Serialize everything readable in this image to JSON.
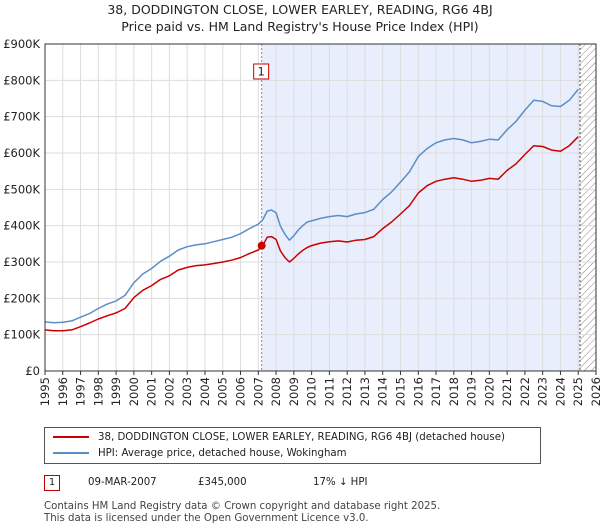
{
  "title": {
    "line1": "38, DODDINGTON CLOSE, LOWER EARLEY, READING, RG6 4BJ",
    "line2": "Price paid vs. HM Land Registry's House Price Index (HPI)"
  },
  "colors": {
    "property": "#cc0000",
    "hpi": "#5b8ec9",
    "shade": "#e8eefb",
    "grid": "#dddddd",
    "vline_sale": "#dd6666",
    "vline_end": "#555555",
    "hatch": "#888888"
  },
  "chart_data": {
    "type": "line",
    "title": "38, DODDINGTON CLOSE, LOWER EARLEY, READING, RG6 4BJ — Price paid vs. HM Land Registry's House Price Index (HPI)",
    "xlabel": "",
    "ylabel": "",
    "xlim": [
      1995.0,
      2026.0
    ],
    "ylim": [
      0,
      900000
    ],
    "x_ticks": [
      1995,
      1996,
      1997,
      1998,
      1999,
      2000,
      2001,
      2002,
      2003,
      2004,
      2005,
      2006,
      2007,
      2008,
      2009,
      2010,
      2011,
      2012,
      2013,
      2014,
      2015,
      2016,
      2017,
      2018,
      2019,
      2020,
      2021,
      2022,
      2023,
      2024,
      2025,
      2026
    ],
    "y_ticks": [
      0,
      100000,
      200000,
      300000,
      400000,
      500000,
      600000,
      700000,
      800000,
      900000
    ],
    "y_tick_labels": [
      "£0",
      "£100K",
      "£200K",
      "£300K",
      "£400K",
      "£500K",
      "£600K",
      "£700K",
      "£800K",
      "£900K"
    ],
    "grid": true,
    "x": [
      1995.0,
      1995.5,
      1996.0,
      1996.5,
      1997.0,
      1997.5,
      1998.0,
      1998.5,
      1999.0,
      1999.5,
      2000.0,
      2000.5,
      2001.0,
      2001.5,
      2002.0,
      2002.5,
      2003.0,
      2003.5,
      2004.0,
      2004.5,
      2005.0,
      2005.5,
      2006.0,
      2006.5,
      2007.0,
      2007.25,
      2007.5,
      2007.75,
      2008.0,
      2008.25,
      2008.5,
      2008.75,
      2009.0,
      2009.25,
      2009.5,
      2009.75,
      2010.0,
      2010.5,
      2011.0,
      2011.5,
      2012.0,
      2012.5,
      2013.0,
      2013.5,
      2014.0,
      2014.5,
      2015.0,
      2015.5,
      2016.0,
      2016.5,
      2017.0,
      2017.5,
      2018.0,
      2018.5,
      2019.0,
      2019.5,
      2020.0,
      2020.5,
      2021.0,
      2021.5,
      2022.0,
      2022.5,
      2023.0,
      2023.5,
      2024.0,
      2024.5,
      2025.0
    ],
    "series": [
      {
        "name": "38, DODDINGTON CLOSE, LOWER EARLEY, READING, RG6 4BJ (detached house)",
        "color": "#cc0000",
        "values": [
          113000,
          111000,
          111000,
          113000,
          122000,
          132000,
          143000,
          152000,
          160000,
          172000,
          202000,
          222000,
          235000,
          252000,
          262000,
          278000,
          285000,
          290000,
          292000,
          296000,
          300000,
          305000,
          312000,
          323000,
          333000,
          345000,
          368000,
          370000,
          362000,
          330000,
          312000,
          300000,
          310000,
          322000,
          332000,
          340000,
          345000,
          352000,
          356000,
          358000,
          355000,
          360000,
          362000,
          370000,
          392000,
          410000,
          432000,
          455000,
          490000,
          510000,
          522000,
          528000,
          532000,
          528000,
          522000,
          525000,
          530000,
          528000,
          552000,
          570000,
          596000,
          620000,
          618000,
          608000,
          605000,
          620000,
          645000
        ]
      },
      {
        "name": "HPI: Average price, detached house, Wokingham",
        "color": "#5b8ec9",
        "values": [
          135000,
          133000,
          134000,
          138000,
          148000,
          158000,
          172000,
          184000,
          193000,
          208000,
          243000,
          267000,
          282000,
          302000,
          316000,
          333000,
          342000,
          347000,
          350000,
          356000,
          362000,
          368000,
          378000,
          392000,
          404000,
          416000,
          440000,
          443000,
          435000,
          398000,
          376000,
          360000,
          372000,
          388000,
          400000,
          410000,
          413000,
          420000,
          425000,
          428000,
          425000,
          432000,
          436000,
          445000,
          472000,
          493000,
          520000,
          548000,
          590000,
          612000,
          628000,
          636000,
          640000,
          636000,
          628000,
          632000,
          638000,
          636000,
          664000,
          687000,
          718000,
          745000,
          742000,
          730000,
          728000,
          745000,
          775000
        ]
      }
    ],
    "annotations": [
      {
        "label": "1",
        "x": 2007.19,
        "y": 345000,
        "date": "09-MAR-2007",
        "price": "£345,000",
        "hpi_delta": "17% ↓ HPI"
      }
    ],
    "shaded_region": [
      2007.19,
      2025.1
    ],
    "hatched_region": [
      2025.1,
      2026.0
    ]
  },
  "legend": {
    "property_label": "38, DODDINGTON CLOSE, LOWER EARLEY, READING, RG6 4BJ (detached house)",
    "hpi_label": "HPI: Average price, detached house, Wokingham"
  },
  "sale": {
    "num": "1",
    "date": "09-MAR-2007",
    "price": "£345,000",
    "hpi": "17% ↓ HPI"
  },
  "footer": {
    "line1": "Contains HM Land Registry data © Crown copyright and database right 2025.",
    "line2": "This data is licensed under the Open Government Licence v3.0."
  }
}
